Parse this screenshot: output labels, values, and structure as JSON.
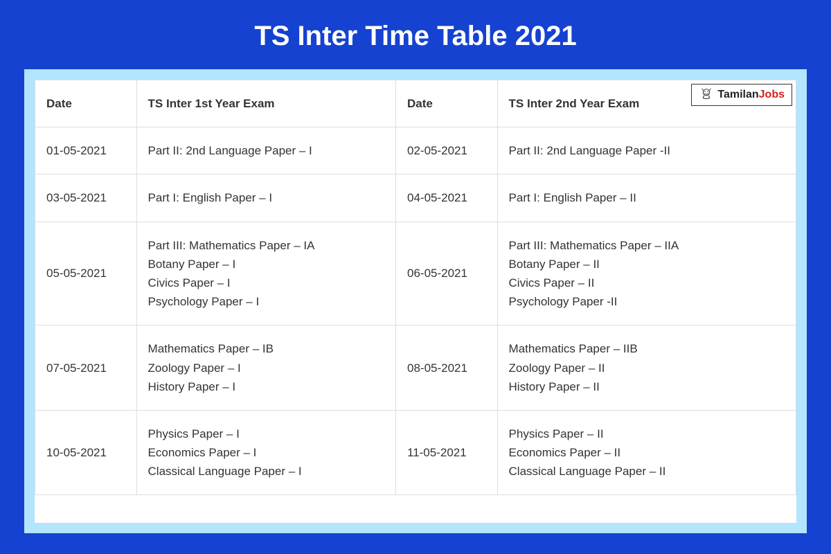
{
  "title": "TS Inter Time Table 2021",
  "logo": {
    "text_part1": "Tamilan",
    "text_part2": "Jobs"
  },
  "colors": {
    "page_bg": "#1542d0",
    "content_bg": "#b3e5fc",
    "table_bg": "#ffffff",
    "border": "#dddddd",
    "title_color": "#ffffff",
    "text_color": "#333333",
    "logo_accent": "#d62020"
  },
  "table": {
    "headers": [
      "Date",
      "TS Inter 1st Year Exam",
      "Date",
      "TS Inter 2nd Year Exam"
    ],
    "rows": [
      {
        "date1": "01-05-2021",
        "exam1": "Part II: 2nd Language Paper – I",
        "date2": "02-05-2021",
        "exam2": "Part II: 2nd Language Paper -II"
      },
      {
        "date1": "03-05-2021",
        "exam1": "Part I: English Paper – I",
        "date2": "04-05-2021",
        "exam2": "Part I: English Paper – II"
      },
      {
        "date1": "05-05-2021",
        "exam1": "Part III: Mathematics Paper – IA\nBotany Paper – I\nCivics Paper – I\nPsychology Paper – I",
        "date2": "06-05-2021",
        "exam2": "Part III: Mathematics Paper – IIA\nBotany Paper – II\nCivics Paper – II\nPsychology Paper -II"
      },
      {
        "date1": "07-05-2021",
        "exam1": "Mathematics Paper – IB\nZoology Paper – I\nHistory Paper –  I",
        "date2": "08-05-2021",
        "exam2": "Mathematics Paper – IIB\nZoology Paper – II\nHistory Paper –  II"
      },
      {
        "date1": "10-05-2021",
        "exam1": "Physics Paper – I\nEconomics Paper – I\nClassical Language Paper – I",
        "date2": "11-05-2021",
        "exam2": "Physics Paper – II\nEconomics Paper – II\nClassical Language Paper – II"
      }
    ]
  }
}
